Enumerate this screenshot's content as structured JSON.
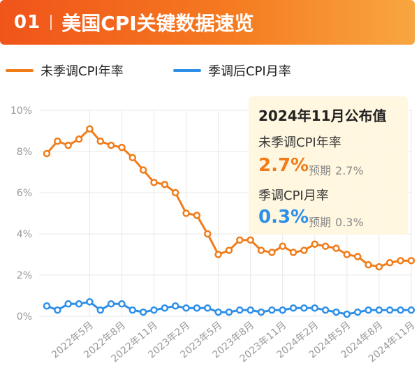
{
  "header": {
    "number": "01",
    "title": "美国CPI关键数据速览"
  },
  "colors": {
    "yoy": "#f07c1a",
    "mom": "#2e8fe8",
    "grid": "#e8e8e8",
    "axis_text": "#999999"
  },
  "tooltip": {
    "title": "2024年11月公布值",
    "yoy_label": "未季调CPI年率",
    "yoy_value": "2.7%",
    "yoy_expected_label": "预期",
    "yoy_expected": "2.7%",
    "mom_label": "季调CPI月率",
    "mom_value": "0.3%",
    "mom_expected_label": "预期",
    "mom_expected": "0.3%"
  },
  "chart_data": {
    "type": "line",
    "title": "",
    "xlabel": "",
    "ylabel": "",
    "ylim": [
      0,
      10
    ],
    "y_ticks": [
      "0%",
      "2%",
      "4%",
      "6%",
      "8%",
      "10%"
    ],
    "x_tick_labels": [
      "2022年5月",
      "2022年8月",
      "2022年11月",
      "2023年2月",
      "2023年5月",
      "2023年8月",
      "2023年11月",
      "2024年2月",
      "2024年5月",
      "2024年8月",
      "2024年11月"
    ],
    "legend_position": "top-left",
    "grid": true,
    "x": [
      "2022-01",
      "2022-02",
      "2022-03",
      "2022-04",
      "2022-05",
      "2022-06",
      "2022-07",
      "2022-08",
      "2022-09",
      "2022-10",
      "2022-11",
      "2022-12",
      "2023-01",
      "2023-02",
      "2023-03",
      "2023-04",
      "2023-05",
      "2023-06",
      "2023-07",
      "2023-08",
      "2023-09",
      "2023-10",
      "2023-11",
      "2023-12",
      "2024-01",
      "2024-02",
      "2024-03",
      "2024-04",
      "2024-05",
      "2024-06",
      "2024-07",
      "2024-08",
      "2024-09",
      "2024-10",
      "2024-11"
    ],
    "series": [
      {
        "name": "未季调CPI年率",
        "values": [
          7.9,
          8.5,
          8.3,
          8.6,
          9.1,
          8.5,
          8.3,
          8.2,
          7.7,
          7.1,
          6.5,
          6.4,
          6.0,
          5.0,
          4.9,
          4.0,
          3.0,
          3.2,
          3.7,
          3.7,
          3.2,
          3.1,
          3.4,
          3.1,
          3.2,
          3.5,
          3.4,
          3.3,
          3.0,
          2.9,
          2.5,
          2.4,
          2.6,
          2.7,
          2.7
        ]
      },
      {
        "name": "季调后CPI月率",
        "values": [
          0.5,
          0.3,
          0.6,
          0.6,
          0.7,
          0.3,
          0.6,
          0.6,
          0.3,
          0.2,
          0.3,
          0.4,
          0.5,
          0.4,
          0.4,
          0.4,
          0.2,
          0.2,
          0.3,
          0.3,
          0.2,
          0.3,
          0.3,
          0.4,
          0.4,
          0.4,
          0.3,
          0.2,
          0.1,
          0.2,
          0.3,
          0.3,
          0.3,
          0.3,
          0.3
        ]
      }
    ]
  }
}
